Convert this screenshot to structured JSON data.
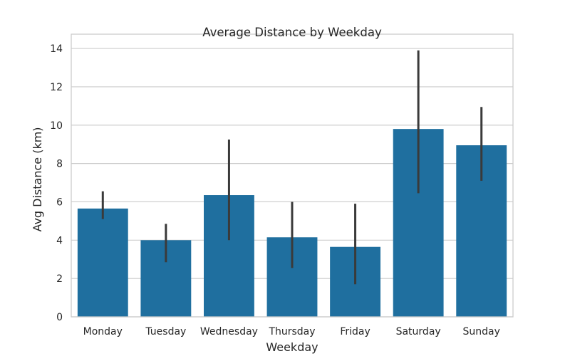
{
  "chart_data": {
    "type": "bar",
    "title": "Average Distance by Weekday",
    "xlabel": "Weekday",
    "ylabel": "Avg Distance (km)",
    "categories": [
      "Monday",
      "Tuesday",
      "Wednesday",
      "Thursday",
      "Friday",
      "Saturday",
      "Sunday"
    ],
    "values": [
      5.65,
      4.0,
      6.35,
      4.15,
      3.65,
      9.8,
      8.95
    ],
    "error_low": [
      5.1,
      2.85,
      4.0,
      2.55,
      1.7,
      6.45,
      7.1
    ],
    "error_high": [
      6.55,
      4.85,
      9.25,
      6.0,
      5.9,
      13.9,
      10.95
    ],
    "ylim": [
      0,
      14.3
    ],
    "yticks": [
      0,
      2,
      4,
      6,
      8,
      10,
      12,
      14
    ],
    "grid": true,
    "bar_color": "#1f6f9f",
    "error_color": "#3a3a3a",
    "grid_color": "#cccccc",
    "axis_color": "#cccccc"
  }
}
